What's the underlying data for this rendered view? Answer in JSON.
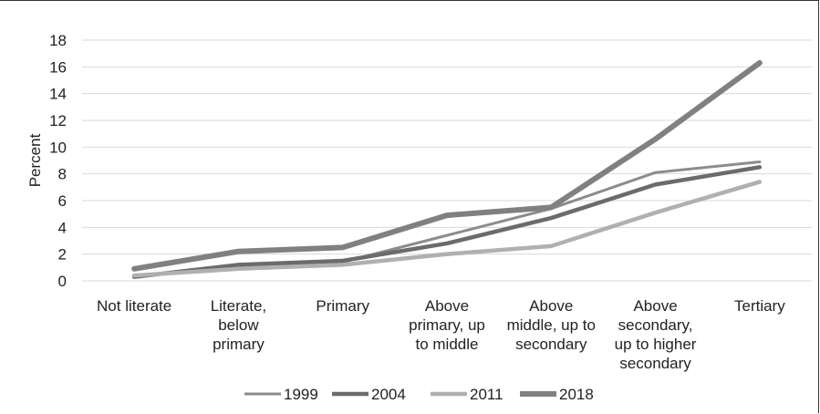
{
  "chart_data": {
    "type": "line",
    "title": "",
    "xlabel": "",
    "ylabel": "Percent",
    "ylim": [
      0,
      18
    ],
    "yticks": [
      0,
      2,
      4,
      6,
      8,
      10,
      12,
      14,
      16,
      18
    ],
    "grid": "horizontal",
    "legend_position": "bottom",
    "categories": [
      [
        "Not literate"
      ],
      [
        "Literate,",
        "below",
        "primary"
      ],
      [
        "Primary"
      ],
      [
        "Above",
        "primary, up",
        "to middle"
      ],
      [
        "Above",
        "middle, up to",
        "secondary"
      ],
      [
        "Above",
        "secondary,",
        "up to higher",
        "secondary"
      ],
      [
        "Tertiary"
      ]
    ],
    "series": [
      {
        "name": "1999",
        "values": [
          0.4,
          1.0,
          1.4,
          3.4,
          5.4,
          8.1,
          8.9
        ],
        "color": "#8c8c8c",
        "width": 3
      },
      {
        "name": "2004",
        "values": [
          0.3,
          1.2,
          1.5,
          2.8,
          4.7,
          7.2,
          8.5
        ],
        "color": "#6b6b6b",
        "width": 4.5
      },
      {
        "name": "2011",
        "values": [
          0.4,
          0.9,
          1.2,
          2.0,
          2.6,
          5.1,
          7.4
        ],
        "color": "#b0b0b0",
        "width": 4.5
      },
      {
        "name": "2018",
        "values": [
          0.9,
          2.2,
          2.5,
          4.9,
          5.5,
          10.6,
          16.3
        ],
        "color": "#808080",
        "width": 6
      }
    ]
  }
}
